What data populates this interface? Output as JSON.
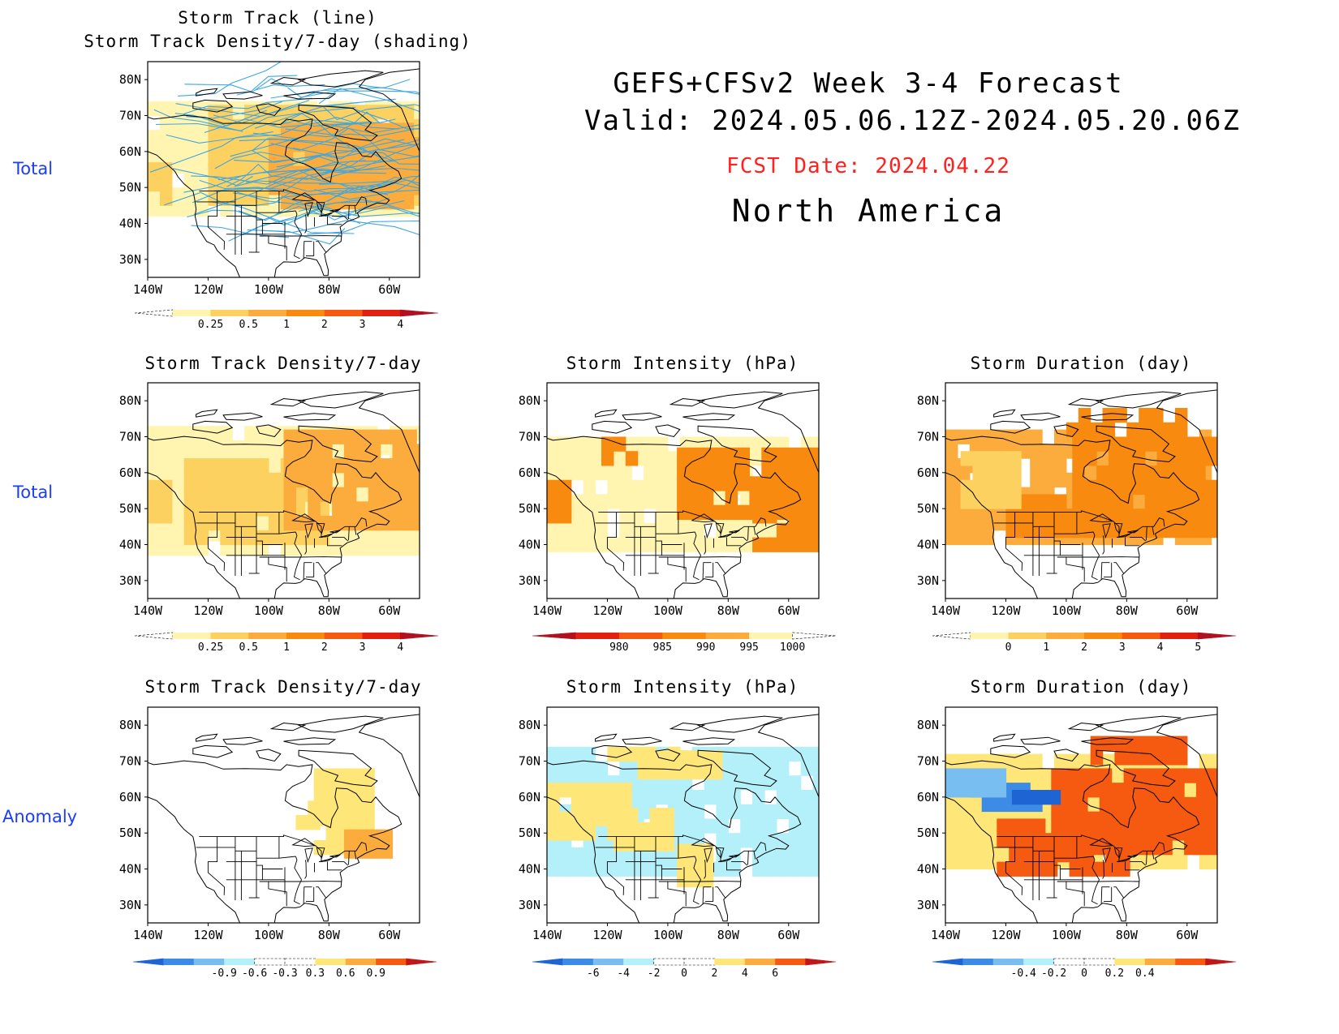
{
  "header": {
    "line1": "GEFS+CFSv2 Week 3-4 Forecast",
    "line2": "Valid: 2024.05.06.12Z-2024.05.20.06Z",
    "fcst_date": "FCST Date: 2024.04.22",
    "region": "North America"
  },
  "row_labels": {
    "row0": "Total",
    "row1": "Total",
    "row2": "Anomaly"
  },
  "axes": {
    "lat_labels": [
      "80N",
      "70N",
      "60N",
      "50N",
      "40N",
      "30N"
    ],
    "lon_labels": [
      "140W",
      "120W",
      "100W",
      "80W",
      "60W"
    ]
  },
  "panels": {
    "track": {
      "title1": "Storm Track (line)",
      "title2": "Storm Track Density/7-day (shading)",
      "track_color": "#3fa7e0",
      "colorbar": {
        "colors": [
          "#ffffff",
          "#fff5b0",
          "#fdd160",
          "#fbac3c",
          "#f98a10",
          "#f55a10",
          "#e02010",
          "#b01020"
        ],
        "labels": [
          "0.25",
          "0.5",
          "1",
          "2",
          "3",
          "4"
        ]
      }
    },
    "density_total": {
      "title": "Storm Track Density/7-day",
      "colorbar": {
        "colors": [
          "#ffffff",
          "#fff5b0",
          "#fdd160",
          "#fbac3c",
          "#f98a10",
          "#f55a10",
          "#e02010",
          "#b01020"
        ],
        "labels": [
          "0.25",
          "0.5",
          "1",
          "2",
          "3",
          "4"
        ]
      }
    },
    "intensity_total": {
      "title": "Storm Intensity (hPa)",
      "colorbar": {
        "colors": [
          "#b01020",
          "#e02010",
          "#f55a10",
          "#f98a10",
          "#fbac3c",
          "#fff5b0",
          "#ffffff"
        ],
        "labels": [
          "980",
          "985",
          "990",
          "995",
          "1000"
        ]
      }
    },
    "duration_total": {
      "title": "Storm Duration (day)",
      "colorbar": {
        "colors": [
          "#ffffff",
          "#fff5b0",
          "#fdd160",
          "#fbac3c",
          "#f98a10",
          "#f55a10",
          "#e02010",
          "#b01020"
        ],
        "labels": [
          "0",
          "1",
          "2",
          "3",
          "4",
          "5"
        ]
      }
    },
    "density_anom": {
      "title": "Storm Track Density/7-day",
      "colorbar": {
        "colors": [
          "#1e64d2",
          "#3c8ce6",
          "#78bef0",
          "#b4f0fa",
          "#ffffff",
          "#ffffff",
          "#ffe678",
          "#fbac3c",
          "#f55a10",
          "#c01818"
        ],
        "labels": [
          "-0.9",
          "-0.6",
          "-0.3",
          "0.3",
          "0.6",
          "0.9"
        ]
      }
    },
    "intensity_anom": {
      "title": "Storm Intensity (hPa)",
      "colorbar": {
        "colors": [
          "#1e64d2",
          "#3c8ce6",
          "#78bef0",
          "#b4f0fa",
          "#ffffff",
          "#ffffff",
          "#ffe678",
          "#fbac3c",
          "#f55a10",
          "#c01818"
        ],
        "labels": [
          "-6",
          "-4",
          "-2",
          "0",
          "2",
          "4",
          "6"
        ]
      }
    },
    "duration_anom": {
      "title": "Storm Duration (day)",
      "colorbar": {
        "colors": [
          "#1e64d2",
          "#3c8ce6",
          "#78bef0",
          "#b4f0fa",
          "#ffffff",
          "#ffffff",
          "#ffe678",
          "#fbac3c",
          "#f55a10",
          "#c01818"
        ],
        "labels": [
          "-0.4",
          "-0.2",
          "0",
          "0.2",
          "0.4"
        ]
      }
    }
  }
}
